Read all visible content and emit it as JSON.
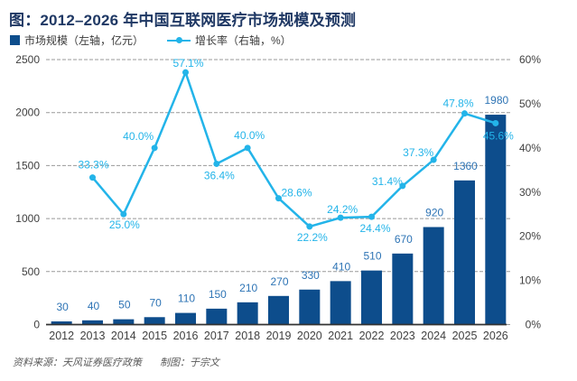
{
  "chart_data": {
    "type": "bar",
    "combo": "bar+line",
    "title": "图：2012–2026 年中国互联网医疗市场规模及预测",
    "categories": [
      "2012",
      "2013",
      "2014",
      "2015",
      "2016",
      "2017",
      "2018",
      "2019",
      "2020",
      "2021",
      "2022",
      "2023",
      "2024",
      "2025",
      "2026"
    ],
    "series": [
      {
        "name": "市场规模（左轴，亿元）",
        "type": "bar",
        "axis": "left",
        "color": "#0d4d8c",
        "values": [
          30,
          40,
          50,
          70,
          110,
          150,
          210,
          270,
          330,
          410,
          510,
          670,
          920,
          1360,
          1980
        ]
      },
      {
        "name": "增长率（右轴，%）",
        "type": "line",
        "axis": "right",
        "color": "#23b4e9",
        "values": [
          null,
          33.3,
          25.0,
          40.0,
          57.1,
          36.4,
          40.0,
          28.6,
          22.2,
          24.2,
          24.4,
          31.4,
          37.3,
          47.8,
          45.6
        ],
        "labels": [
          null,
          "33.3%",
          "25.0%",
          "40.0%",
          "57.1%",
          "36.4%",
          "40.0%",
          "28.6%",
          "22.2%",
          "24.2%",
          "24.4%",
          "31.4%",
          "37.3%",
          "47.8%",
          "45.6%"
        ]
      }
    ],
    "left_axis": {
      "ticks": [
        0,
        500,
        1000,
        1500,
        2000,
        2500
      ],
      "range": [
        0,
        2500
      ],
      "grid": true
    },
    "right_axis": {
      "ticks": [
        "0%",
        "10%",
        "20%",
        "30%",
        "40%",
        "50%",
        "60%"
      ],
      "range": [
        0,
        60
      ]
    },
    "legend_position": "top-left"
  },
  "footer": {
    "source": "资料来源：天风证券医疗政策",
    "credit": "制图：于宗文"
  },
  "colors": {
    "bar": "#0d4d8c",
    "line": "#23b4e9",
    "title": "#1f3864",
    "bar_label": "#2e74b5",
    "axis_text": "#404040",
    "grid": "#999999",
    "axis_line": "#333333",
    "footer_text": "#595959"
  }
}
